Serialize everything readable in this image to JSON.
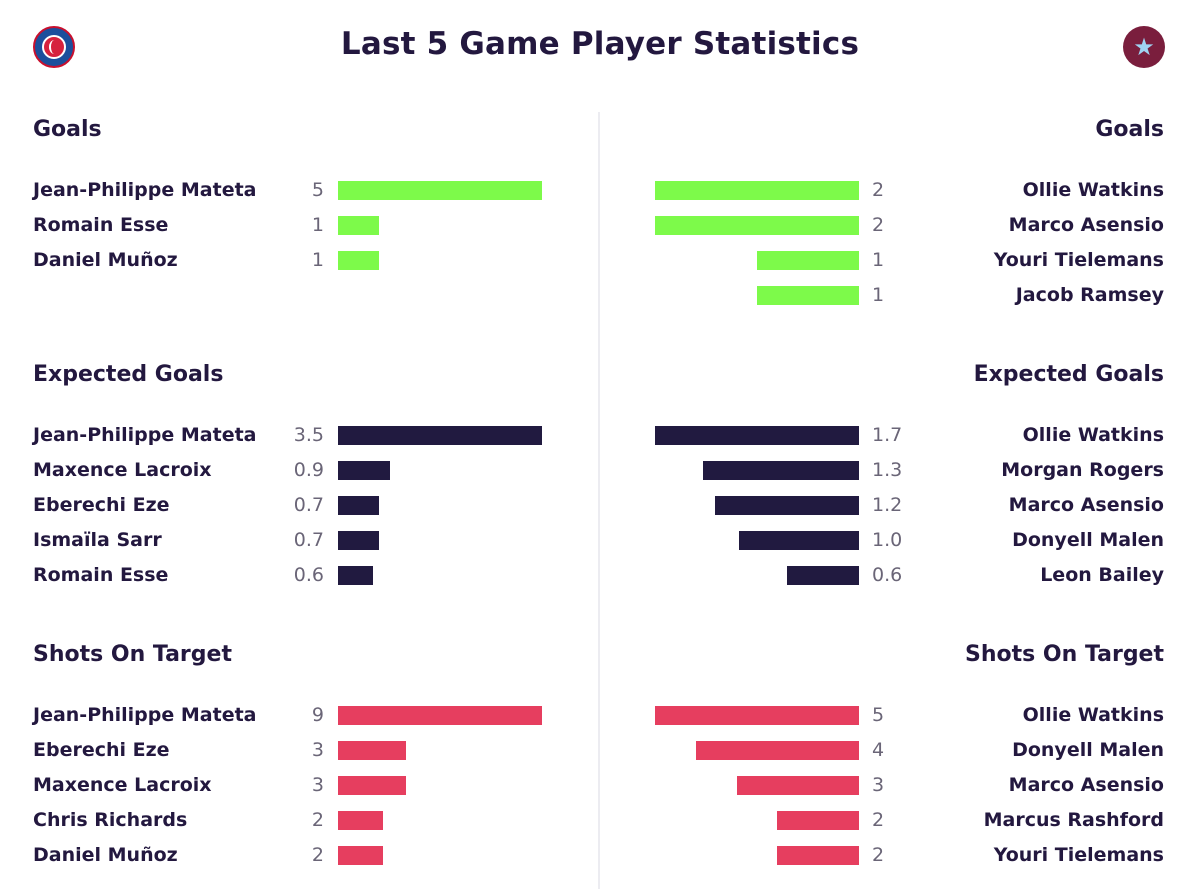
{
  "header": {
    "title": "Last 5 Game Player Statistics",
    "left_crest_icon": "crystal-palace-crest-icon",
    "right_crest_icon": "aston-villa-crest-icon"
  },
  "chart_data": [
    {
      "type": "bar",
      "title": "Goals",
      "color": "#7dfa4a",
      "team": "left",
      "categories": [
        "Jean-Philippe Mateta",
        "Romain Esse",
        "Daniel Muñoz"
      ],
      "values": [
        5,
        1,
        1
      ],
      "value_labels": [
        "5",
        "1",
        "1"
      ],
      "xlim": [
        0,
        5
      ]
    },
    {
      "type": "bar",
      "title": "Goals",
      "color": "#7dfa4a",
      "team": "right",
      "categories": [
        "Ollie Watkins",
        "Marco Asensio",
        "Youri Tielemans",
        "Jacob Ramsey"
      ],
      "values": [
        2,
        2,
        1,
        1
      ],
      "value_labels": [
        "2",
        "2",
        "1",
        "1"
      ],
      "xlim": [
        0,
        2
      ]
    },
    {
      "type": "bar",
      "title": "Expected Goals",
      "color": "#211a40",
      "team": "left",
      "categories": [
        "Jean-Philippe Mateta",
        "Maxence Lacroix",
        "Eberechi Eze",
        "Ismaïla Sarr",
        "Romain Esse"
      ],
      "values": [
        3.5,
        0.9,
        0.7,
        0.7,
        0.6
      ],
      "value_labels": [
        "3.5",
        "0.9",
        "0.7",
        "0.7",
        "0.6"
      ],
      "xlim": [
        0,
        3.5
      ]
    },
    {
      "type": "bar",
      "title": "Expected Goals",
      "color": "#211a40",
      "team": "right",
      "categories": [
        "Ollie Watkins",
        "Morgan Rogers",
        "Marco Asensio",
        "Donyell Malen",
        "Leon Bailey"
      ],
      "values": [
        1.7,
        1.3,
        1.2,
        1.0,
        0.6
      ],
      "value_labels": [
        "1.7",
        "1.3",
        "1.2",
        "1.0",
        "0.6"
      ],
      "xlim": [
        0,
        1.7
      ]
    },
    {
      "type": "bar",
      "title": "Shots On Target",
      "color": "#e63e5f",
      "team": "left",
      "categories": [
        "Jean-Philippe Mateta",
        "Eberechi Eze",
        "Maxence Lacroix",
        "Chris Richards",
        "Daniel Muñoz"
      ],
      "values": [
        9,
        3,
        3,
        2,
        2
      ],
      "value_labels": [
        "9",
        "3",
        "3",
        "2",
        "2"
      ],
      "xlim": [
        0,
        9
      ]
    },
    {
      "type": "bar",
      "title": "Shots On Target",
      "color": "#e63e5f",
      "team": "right",
      "categories": [
        "Ollie Watkins",
        "Donyell Malen",
        "Marco Asensio",
        "Marcus Rashford",
        "Youri Tielemans"
      ],
      "values": [
        5,
        4,
        3,
        2,
        2
      ],
      "value_labels": [
        "5",
        "4",
        "3",
        "2",
        "2"
      ],
      "xlim": [
        0,
        5
      ]
    }
  ]
}
